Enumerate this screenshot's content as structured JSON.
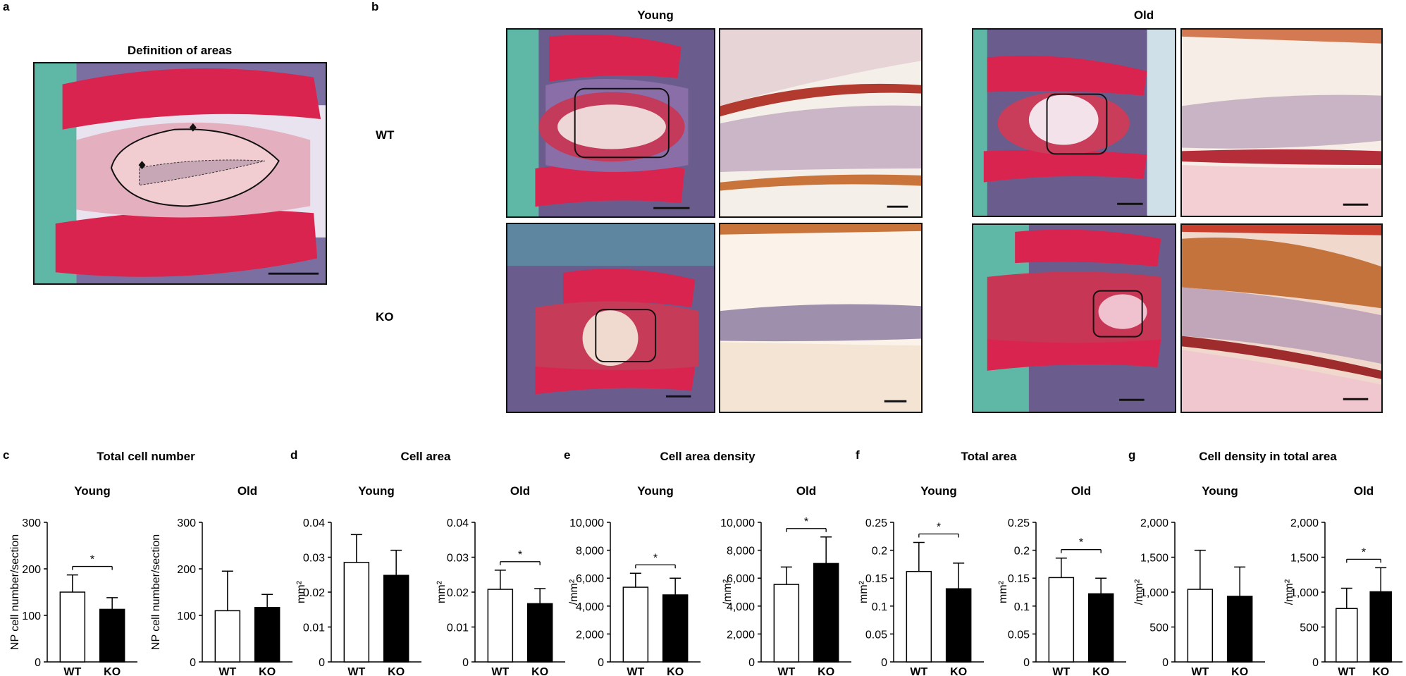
{
  "panel_a": {
    "letter": "a",
    "title": "Definition of areas"
  },
  "panel_b": {
    "letter": "b",
    "groups": [
      "Young",
      "Old"
    ],
    "rows": [
      "WT",
      "KO"
    ]
  },
  "colors": {
    "safranin_red": "#d9244f",
    "fast_green": "#5fb8a6",
    "marrow_purple": "#6a5d8e",
    "np_pink": "#f1ccd0",
    "collagen_orange": "#d97a3c",
    "bar_wt": "#ffffff",
    "bar_ko": "#000000"
  },
  "chart_data": [
    {
      "letter": "c",
      "title": "Total cell number",
      "type": "bar",
      "panels": [
        {
          "group": "Young",
          "ylabel": "NP cell number/section",
          "ylim": [
            0,
            300
          ],
          "yticks": [
            "0",
            "100",
            "200",
            "300"
          ],
          "categories": [
            "WT",
            "KO"
          ],
          "values": [
            150,
            113
          ],
          "errors": [
            37,
            25
          ],
          "significance": "*"
        },
        {
          "group": "Old",
          "ylabel": "NP cell number/section",
          "ylim": [
            0,
            300
          ],
          "yticks": [
            "0",
            "100",
            "200",
            "300"
          ],
          "categories": [
            "WT",
            "KO"
          ],
          "values": [
            110,
            117
          ],
          "errors": [
            85,
            28
          ],
          "significance": ""
        }
      ]
    },
    {
      "letter": "d",
      "title": "Cell area",
      "type": "bar",
      "panels": [
        {
          "group": "Young",
          "ylabel": "mm²",
          "ylim": [
            0,
            0.04
          ],
          "yticks": [
            "0",
            "0.01",
            "0.02",
            "0.03",
            "0.04"
          ],
          "categories": [
            "WT",
            "KO"
          ],
          "values": [
            0.0285,
            0.0248
          ],
          "errors": [
            0.008,
            0.0072
          ],
          "significance": ""
        },
        {
          "group": "Old",
          "ylabel": "mm²",
          "ylim": [
            0,
            0.04
          ],
          "yticks": [
            "0",
            "0.01",
            "0.02",
            "0.03",
            "0.04"
          ],
          "categories": [
            "WT",
            "KO"
          ],
          "values": [
            0.0208,
            0.0167
          ],
          "errors": [
            0.0055,
            0.0043
          ],
          "significance": "*"
        }
      ]
    },
    {
      "letter": "e",
      "title": "Cell area density",
      "type": "bar",
      "panels": [
        {
          "group": "Young",
          "ylabel": "/mm²",
          "ylim": [
            0,
            10000
          ],
          "yticks": [
            "0",
            "2,000",
            "4,000",
            "6,000",
            "8,000",
            "10,000"
          ],
          "categories": [
            "WT",
            "KO"
          ],
          "values": [
            5350,
            4800
          ],
          "errors": [
            1000,
            1200
          ],
          "significance": "*"
        },
        {
          "group": "Old",
          "ylabel": "/mm²",
          "ylim": [
            0,
            10000
          ],
          "yticks": [
            "0",
            "2,000",
            "4,000",
            "6,000",
            "8,000",
            "10,000"
          ],
          "categories": [
            "WT",
            "KO"
          ],
          "values": [
            5550,
            7050
          ],
          "errors": [
            1250,
            1900
          ],
          "significance": "*"
        }
      ]
    },
    {
      "letter": "f",
      "title": "Total area",
      "type": "bar",
      "panels": [
        {
          "group": "Young",
          "ylabel": "mm²",
          "ylim": [
            0,
            0.25
          ],
          "yticks": [
            "0",
            "0.05",
            "0.1",
            "0.15",
            "0.2",
            "0.25"
          ],
          "categories": [
            "WT",
            "KO"
          ],
          "values": [
            0.162,
            0.131
          ],
          "errors": [
            0.052,
            0.046
          ],
          "significance": "*"
        },
        {
          "group": "Old",
          "ylabel": "mm²",
          "ylim": [
            0,
            0.25
          ],
          "yticks": [
            "0",
            "0.05",
            "0.1",
            "0.15",
            "0.2",
            "0.25"
          ],
          "categories": [
            "WT",
            "KO"
          ],
          "values": [
            0.151,
            0.122
          ],
          "errors": [
            0.035,
            0.028
          ],
          "significance": "*"
        }
      ]
    },
    {
      "letter": "g",
      "title": "Cell density in total area",
      "type": "bar",
      "panels": [
        {
          "group": "Young",
          "ylabel": "/mm²",
          "ylim": [
            0,
            2000
          ],
          "yticks": [
            "0",
            "500",
            "1,000",
            "1,500",
            "2,000"
          ],
          "categories": [
            "WT",
            "KO"
          ],
          "values": [
            1040,
            940
          ],
          "errors": [
            560,
            420
          ],
          "significance": ""
        },
        {
          "group": "Old",
          "ylabel": "/mm²",
          "ylim": [
            0,
            2000
          ],
          "yticks": [
            "0",
            "500",
            "1,000",
            "1,500",
            "2,000"
          ],
          "categories": [
            "WT",
            "KO"
          ],
          "values": [
            765,
            1005
          ],
          "errors": [
            290,
            345
          ],
          "significance": "*"
        }
      ]
    }
  ]
}
